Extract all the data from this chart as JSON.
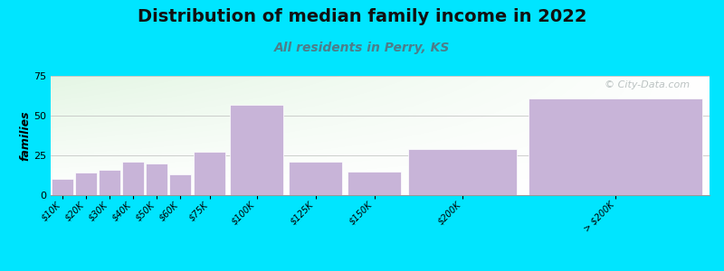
{
  "title": "Distribution of median family income in 2022",
  "subtitle": "All residents in Perry, KS",
  "ylabel": "families",
  "categories": [
    "$10K",
    "$20K",
    "$30K",
    "$40K",
    "$50K",
    "$60K",
    "$75K",
    "$100K",
    "$125K",
    "$150K",
    "$200K",
    "> $200K"
  ],
  "values": [
    10,
    14,
    16,
    21,
    20,
    13,
    27,
    57,
    21,
    15,
    29,
    61
  ],
  "bar_color": "#c8b4d8",
  "bar_edgecolor": "#ffffff",
  "ylim": [
    0,
    75
  ],
  "yticks": [
    0,
    25,
    50,
    75
  ],
  "background_outer": "#00e5ff",
  "background_inner_top_left": "#d8eec8",
  "background_inner_right": "#ffffff",
  "title_fontsize": 14,
  "subtitle_fontsize": 10,
  "subtitle_color": "#4d7d8a",
  "ylabel_fontsize": 9,
  "tick_fontsize": 7,
  "watermark_text": "© City-Data.com",
  "watermark_color": "#b0b8b8"
}
